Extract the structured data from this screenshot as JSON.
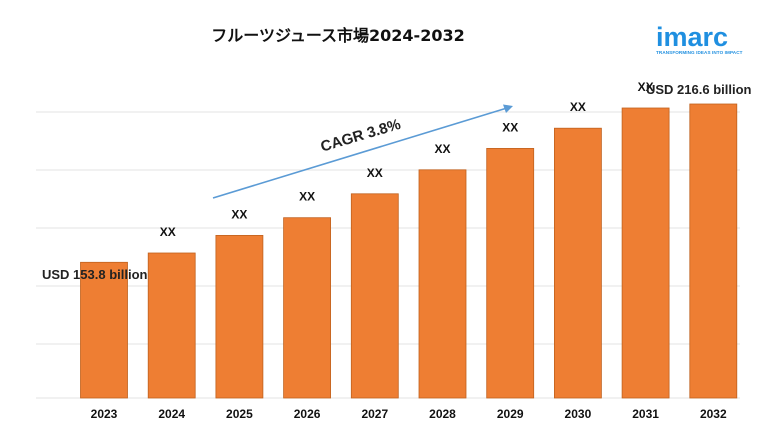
{
  "brand": {
    "name": "imarc",
    "tagline": "TRANSFORMING IDEAS INTO IMPACT",
    "color": "#1f8fe0"
  },
  "chart_data": {
    "type": "bar",
    "title": "フルーツジュース市場2024-2032",
    "xlabel": "",
    "ylabel": "",
    "categories": [
      "2023",
      "2024",
      "2025",
      "2026",
      "2027",
      "2028",
      "2029",
      "2030",
      "2031",
      "2032"
    ],
    "values": [
      153.8,
      157.5,
      164.5,
      171.5,
      181.0,
      190.5,
      199.0,
      207.0,
      215.0,
      216.6
    ],
    "data_labels": [
      "",
      "XX",
      "XX",
      "XX",
      "XX",
      "XX",
      "XX",
      "XX",
      "XX",
      ""
    ],
    "start_label": "USD 153.8 billion",
    "end_label": "USD 216.6 billion",
    "cagr_label": "CAGR 3.8%",
    "ylim": [
      100,
      220
    ],
    "grid": true,
    "bar_color": "#ee7e33",
    "arrow_color": "#5b9bd5"
  }
}
